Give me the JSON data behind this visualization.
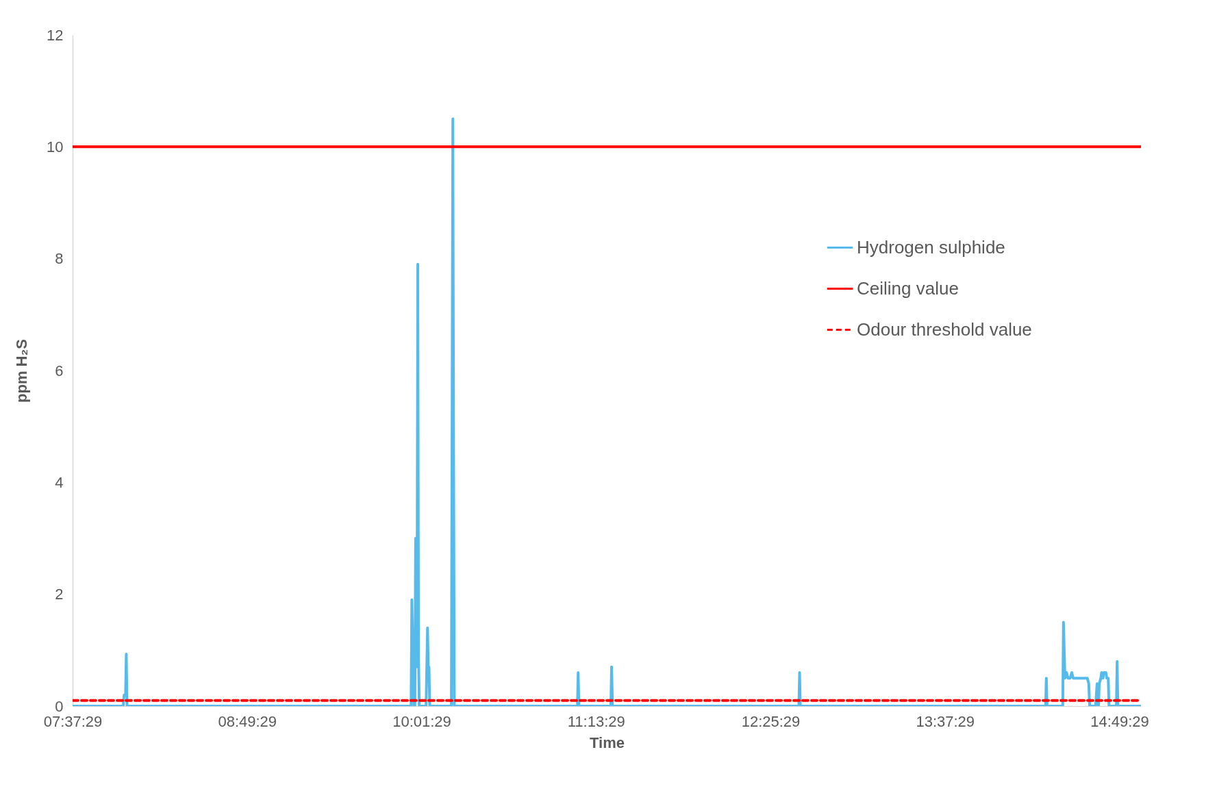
{
  "chart_data": {
    "type": "line",
    "xlabel": "Time",
    "ylabel": "ppm H₂S",
    "xlim": [
      7.6247,
      14.973
    ],
    "ylim": [
      0,
      12
    ],
    "xticks": [
      {
        "value": 7.6247,
        "label": "07:37:29"
      },
      {
        "value": 8.8247,
        "label": "08:49:29"
      },
      {
        "value": 10.0247,
        "label": "10:01:29"
      },
      {
        "value": 11.2247,
        "label": "11:13:29"
      },
      {
        "value": 12.4247,
        "label": "12:25:29"
      },
      {
        "value": 13.6247,
        "label": "13:37:29"
      },
      {
        "value": 14.8247,
        "label": "14:49:29"
      }
    ],
    "yticks": [
      0,
      2,
      4,
      6,
      8,
      10,
      12
    ],
    "grid": false,
    "legend": "top right",
    "series": [
      {
        "name": "Hydrogen sulphide",
        "color": "#56bbea",
        "line_style": "solid",
        "x": [
          7.625,
          7.973,
          7.979,
          7.989,
          7.994,
          7.999,
          9.953,
          9.958,
          9.968,
          9.973,
          9.979,
          9.984,
          9.989,
          9.994,
          9.999,
          10.004,
          10.009,
          10.056,
          10.066,
          10.071,
          10.076,
          10.081,
          10.23,
          10.24,
          10.245,
          10.25,
          11.097,
          11.102,
          11.107,
          11.327,
          11.332,
          11.338,
          12.62,
          12.625,
          12.63,
          14.317,
          14.322,
          14.327,
          14.435,
          14.44,
          14.45,
          14.461,
          14.471,
          14.486,
          14.497,
          14.507,
          14.604,
          14.614,
          14.62,
          14.661,
          14.671,
          14.681,
          14.686,
          14.697,
          14.702,
          14.712,
          14.717,
          14.732,
          14.738,
          14.748,
          14.753,
          14.804,
          14.809,
          14.814,
          14.973
        ],
        "values": [
          0,
          0,
          0.2,
          0.2,
          0.93,
          0,
          0,
          1.9,
          0.7,
          0,
          0,
          3.0,
          0.7,
          1.9,
          7.9,
          0.9,
          0,
          0,
          1.4,
          0.7,
          0.7,
          0,
          0,
          10.5,
          4.8,
          0,
          0,
          0.6,
          0,
          0,
          0.7,
          0,
          0,
          0.6,
          0,
          0,
          0.5,
          0,
          0,
          1.5,
          0.5,
          0.6,
          0.5,
          0.5,
          0.6,
          0.5,
          0.5,
          0.4,
          0,
          0,
          0.4,
          0,
          0.4,
          0.5,
          0.6,
          0.5,
          0.6,
          0.6,
          0.5,
          0.5,
          0,
          0,
          0.8,
          0,
          0
        ]
      }
    ],
    "ref_lines": [
      {
        "axis": "y",
        "value": 10,
        "label": "Ceiling value",
        "color": "#ff0000",
        "line_style": "solid"
      },
      {
        "axis": "y",
        "value": 0.1,
        "label": "Odour threshold value",
        "color": "#ff0000",
        "line_style": "dashed"
      }
    ]
  }
}
